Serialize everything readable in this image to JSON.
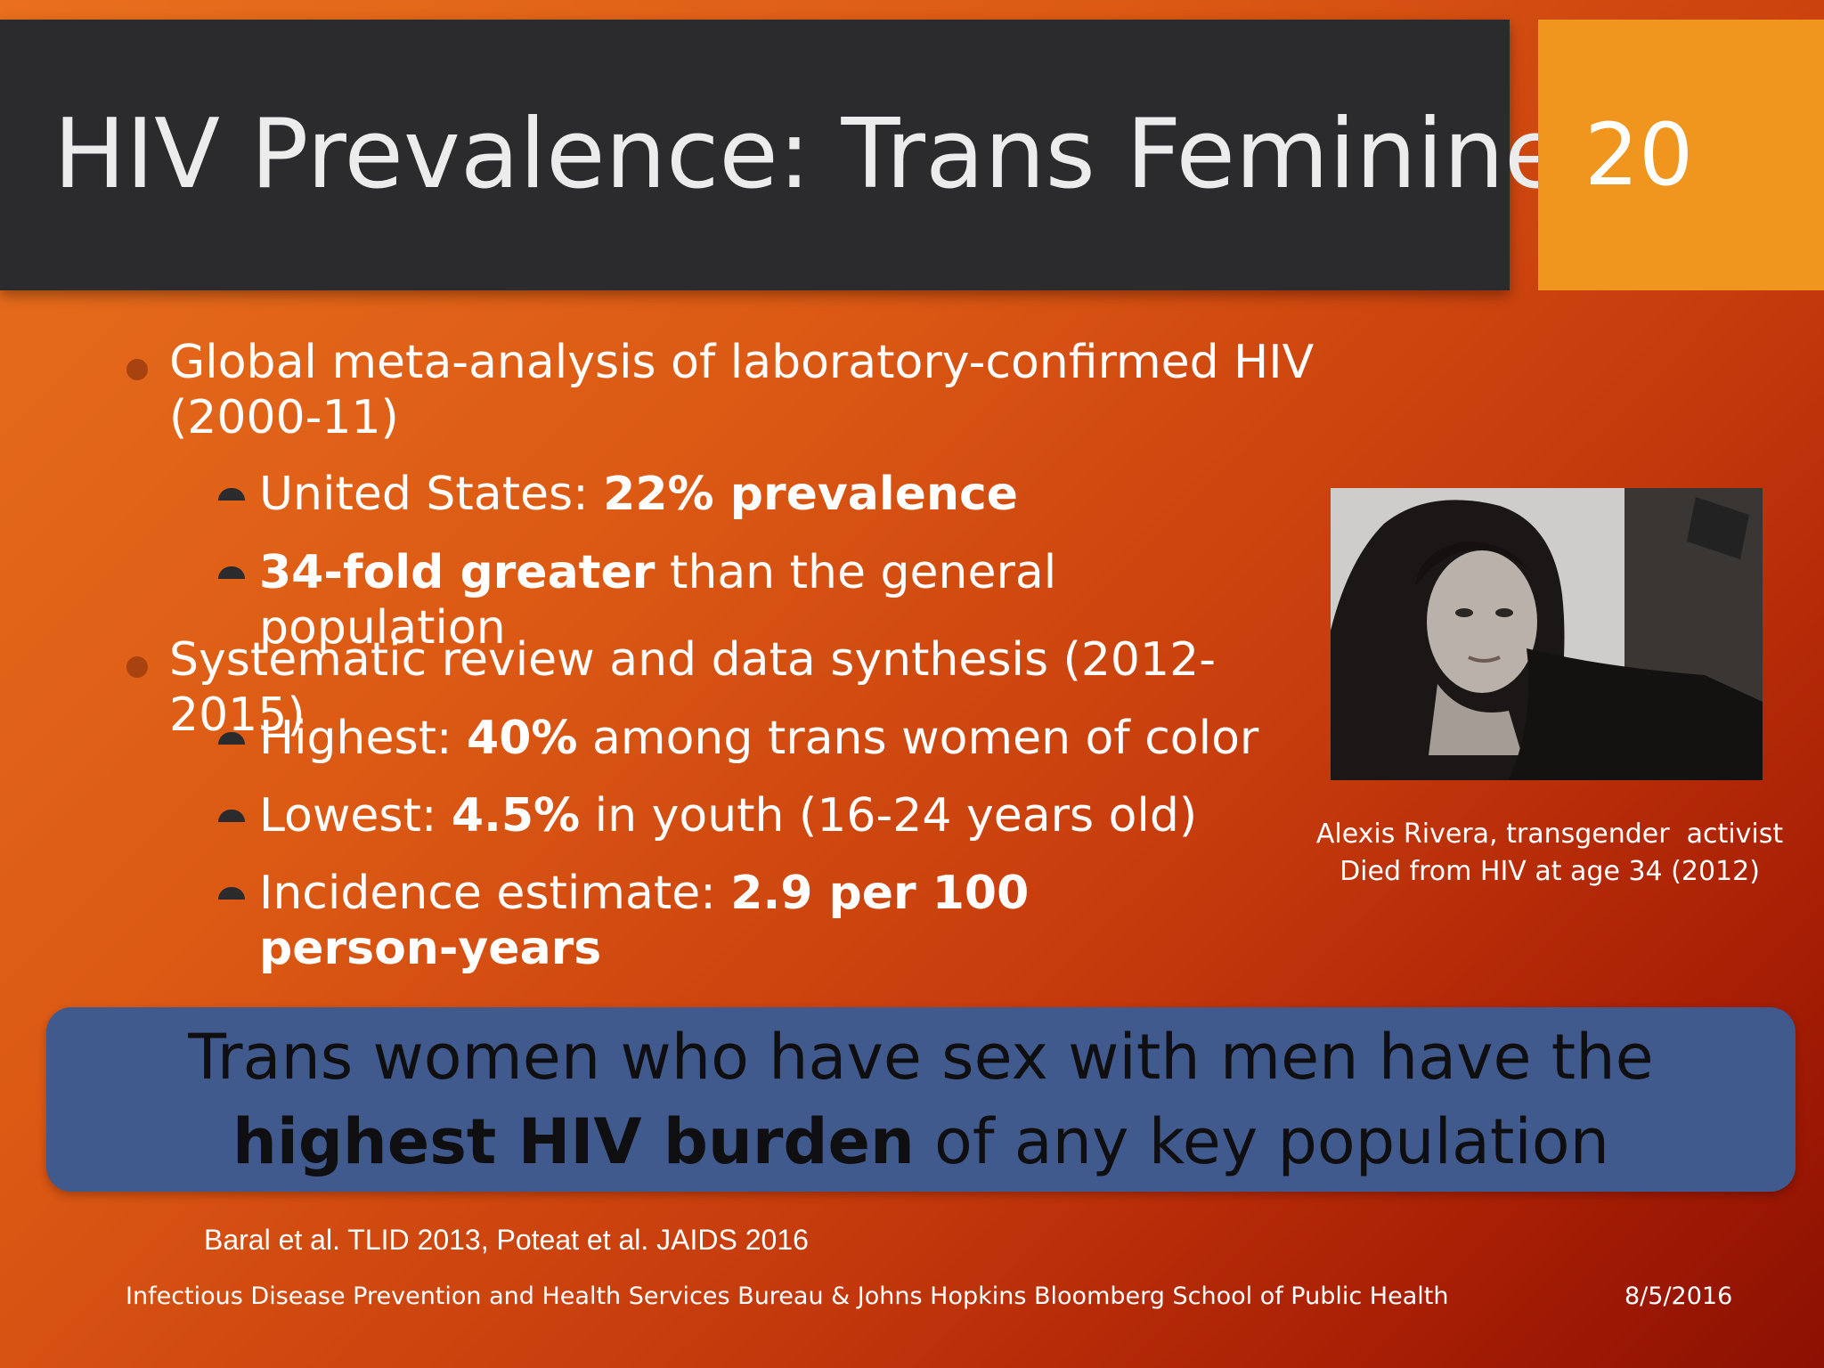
{
  "title": "HIV Prevalence: Trans Feminine",
  "slide_number": "20",
  "bullets": [
    {
      "text": "Global meta-analysis of laboratory-confirmed HIV (2000-11)",
      "sub": [
        {
          "pre": "United States: ",
          "bold": "22% prevalence",
          "post": ""
        },
        {
          "pre": "",
          "bold": "34-fold greater",
          "post": " than the general population"
        }
      ]
    },
    {
      "text": "Systematic review and data synthesis (2012-2015)",
      "sub": [
        {
          "pre": "Highest: ",
          "bold": "40%",
          "post": " among trans women of color"
        },
        {
          "pre": "Lowest: ",
          "bold": "4.5%",
          "post": " in youth (16-24 years old)"
        },
        {
          "pre": "Incidence estimate: ",
          "bold": "2.9 per 100 person-years",
          "post": ""
        }
      ]
    }
  ],
  "photo": {
    "caption_line1": "Alexis Rivera, transgender  activist",
    "caption_line2": "Died from HIV at age 34 (2012)"
  },
  "callout": {
    "line1": "Trans women who have sex with men have the",
    "bold": "highest HIV burden",
    "post": " of any key population"
  },
  "citation": "Baral et al. TLID 2013, Poteat et al. JAIDS 2016",
  "footer": {
    "org": "Infectious Disease Prevention and Health Services Bureau & Johns Hopkins Bloomberg School of Public Health",
    "date": "8/5/2016"
  },
  "colors": {
    "title_bar": "#2b2b2e",
    "number_box": "#f0961e",
    "callout": "#415a8d"
  }
}
